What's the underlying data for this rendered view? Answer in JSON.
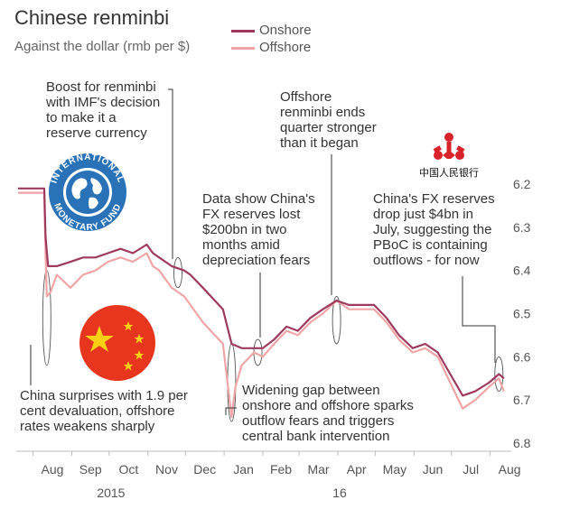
{
  "header": {
    "title": "Chinese renminbi",
    "subtitle": "Against the dollar (rmb per $)"
  },
  "legend": [
    {
      "label": "Onshore",
      "color": "#9e3a5e"
    },
    {
      "label": "Offshore",
      "color": "#f2a5a6"
    }
  ],
  "annotations": [
    {
      "lines": [
        "Boost for renminbi",
        "with IMF's decision",
        "to make it a",
        "reserve currency"
      ]
    },
    {
      "lines": [
        "Offshore",
        "renminbi ends",
        "quarter stronger",
        "than it began"
      ]
    },
    {
      "lines": [
        "Data show China's",
        "FX reserves lost",
        "$200bn in two",
        "months amid",
        "depreciation fears"
      ]
    },
    {
      "lines": [
        "China's FX reserves",
        "drop just $4bn in",
        "July, suggesting the",
        "PBoC is containing",
        "outflows - for now"
      ]
    },
    {
      "lines": [
        "Widening gap between",
        "onshore and offshore sparks",
        "outflow fears and triggers",
        "central bank intervention"
      ]
    },
    {
      "lines": [
        "China surprises with 1.9 per",
        "cent devaluation, offshore",
        "rates weakens sharply"
      ]
    }
  ],
  "logos": {
    "imf": {
      "top_text": "INTERNATIONAL",
      "bottom_text": "MONETARY FUND"
    },
    "pboc": {
      "text": "中国人民银行"
    }
  },
  "chart_data": {
    "type": "line",
    "ylabel": "",
    "xlabel": "",
    "y_axis_position": "right",
    "y_inverted": true,
    "ylim": [
      6.2,
      6.8
    ],
    "yticks": [
      6.2,
      6.3,
      6.4,
      6.5,
      6.6,
      6.7,
      6.8
    ],
    "xlim": [
      "2015-07-20",
      "2016-08-15"
    ],
    "months": [
      {
        "label": "Aug",
        "date": "2015-08-01"
      },
      {
        "label": "Sep",
        "date": "2015-09-01"
      },
      {
        "label": "Oct",
        "date": "2015-10-01"
      },
      {
        "label": "Nov",
        "date": "2015-11-01"
      },
      {
        "label": "Dec",
        "date": "2015-12-01"
      },
      {
        "label": "Jan",
        "date": "2016-01-01"
      },
      {
        "label": "Feb",
        "date": "2016-02-01"
      },
      {
        "label": "Mar",
        "date": "2016-03-01"
      },
      {
        "label": "Apr",
        "date": "2016-04-01"
      },
      {
        "label": "May",
        "date": "2016-05-01"
      },
      {
        "label": "Jun",
        "date": "2016-06-01"
      },
      {
        "label": "Jul",
        "date": "2016-07-01"
      },
      {
        "label": "Aug",
        "date": "2016-08-01"
      }
    ],
    "years": [
      {
        "label": "2015",
        "date": "2015-10-01"
      },
      {
        "label": "16",
        "date": "2016-04-01"
      }
    ],
    "grid": false,
    "series": [
      {
        "name": "Onshore",
        "color": "#9e3a5e",
        "points": [
          [
            "2015-07-20",
            6.21
          ],
          [
            "2015-08-10",
            6.21
          ],
          [
            "2015-08-11",
            6.32
          ],
          [
            "2015-08-13",
            6.39
          ],
          [
            "2015-08-20",
            6.39
          ],
          [
            "2015-08-31",
            6.38
          ],
          [
            "2015-09-10",
            6.37
          ],
          [
            "2015-09-20",
            6.37
          ],
          [
            "2015-09-30",
            6.36
          ],
          [
            "2015-10-10",
            6.35
          ],
          [
            "2015-10-20",
            6.36
          ],
          [
            "2015-10-31",
            6.34
          ],
          [
            "2015-11-05",
            6.36
          ],
          [
            "2015-11-10",
            6.37
          ],
          [
            "2015-11-20",
            6.39
          ],
          [
            "2015-11-30",
            6.4
          ],
          [
            "2015-12-05",
            6.41
          ],
          [
            "2015-12-15",
            6.44
          ],
          [
            "2015-12-31",
            6.49
          ],
          [
            "2016-01-07",
            6.57
          ],
          [
            "2016-01-15",
            6.58
          ],
          [
            "2016-01-25",
            6.58
          ],
          [
            "2016-02-01",
            6.58
          ],
          [
            "2016-02-10",
            6.56
          ],
          [
            "2016-02-20",
            6.53
          ],
          [
            "2016-02-29",
            6.54
          ],
          [
            "2016-03-10",
            6.51
          ],
          [
            "2016-03-20",
            6.49
          ],
          [
            "2016-03-31",
            6.47
          ],
          [
            "2016-04-10",
            6.48
          ],
          [
            "2016-04-20",
            6.48
          ],
          [
            "2016-04-30",
            6.48
          ],
          [
            "2016-05-10",
            6.51
          ],
          [
            "2016-05-20",
            6.55
          ],
          [
            "2016-05-31",
            6.58
          ],
          [
            "2016-06-10",
            6.57
          ],
          [
            "2016-06-20",
            6.59
          ],
          [
            "2016-06-30",
            6.64
          ],
          [
            "2016-07-10",
            6.69
          ],
          [
            "2016-07-20",
            6.68
          ],
          [
            "2016-07-31",
            6.66
          ],
          [
            "2016-08-08",
            6.64
          ],
          [
            "2016-08-12",
            6.65
          ]
        ]
      },
      {
        "name": "Offshore",
        "color": "#f2a5a6",
        "points": [
          [
            "2015-07-20",
            6.22
          ],
          [
            "2015-08-10",
            6.22
          ],
          [
            "2015-08-11",
            6.36
          ],
          [
            "2015-08-12",
            6.46
          ],
          [
            "2015-08-15",
            6.45
          ],
          [
            "2015-08-20",
            6.41
          ],
          [
            "2015-08-31",
            6.44
          ],
          [
            "2015-09-10",
            6.41
          ],
          [
            "2015-09-20",
            6.4
          ],
          [
            "2015-09-30",
            6.38
          ],
          [
            "2015-10-10",
            6.37
          ],
          [
            "2015-10-20",
            6.38
          ],
          [
            "2015-10-31",
            6.36
          ],
          [
            "2015-11-05",
            6.39
          ],
          [
            "2015-11-10",
            6.4
          ],
          [
            "2015-11-20",
            6.44
          ],
          [
            "2015-11-30",
            6.46
          ],
          [
            "2015-12-05",
            6.48
          ],
          [
            "2015-12-15",
            6.52
          ],
          [
            "2015-12-31",
            6.57
          ],
          [
            "2016-01-07",
            6.74
          ],
          [
            "2016-01-10",
            6.67
          ],
          [
            "2016-01-15",
            6.62
          ],
          [
            "2016-01-25",
            6.59
          ],
          [
            "2016-02-01",
            6.6
          ],
          [
            "2016-02-10",
            6.57
          ],
          [
            "2016-02-20",
            6.54
          ],
          [
            "2016-02-29",
            6.55
          ],
          [
            "2016-03-10",
            6.52
          ],
          [
            "2016-03-20",
            6.5
          ],
          [
            "2016-03-31",
            6.47
          ],
          [
            "2016-04-10",
            6.49
          ],
          [
            "2016-04-20",
            6.49
          ],
          [
            "2016-04-30",
            6.49
          ],
          [
            "2016-05-10",
            6.52
          ],
          [
            "2016-05-20",
            6.56
          ],
          [
            "2016-05-31",
            6.59
          ],
          [
            "2016-06-10",
            6.58
          ],
          [
            "2016-06-20",
            6.6
          ],
          [
            "2016-06-30",
            6.66
          ],
          [
            "2016-07-10",
            6.72
          ],
          [
            "2016-07-20",
            6.7
          ],
          [
            "2016-07-31",
            6.67
          ],
          [
            "2016-08-08",
            6.65
          ],
          [
            "2016-08-12",
            6.68
          ]
        ]
      }
    ],
    "highlights": [
      {
        "date": "2015-08-12",
        "y_low": 6.4,
        "y_high": 6.62
      },
      {
        "date": "2015-11-25",
        "y_low": 6.37,
        "y_high": 6.44
      },
      {
        "date": "2016-01-07",
        "y_low": 6.57,
        "y_high": 6.75
      },
      {
        "date": "2016-01-28",
        "y_low": 6.56,
        "y_high": 6.62
      },
      {
        "date": "2016-03-31",
        "y_low": 6.46,
        "y_high": 6.57
      },
      {
        "date": "2016-08-08",
        "y_low": 6.6,
        "y_high": 6.68
      }
    ]
  }
}
